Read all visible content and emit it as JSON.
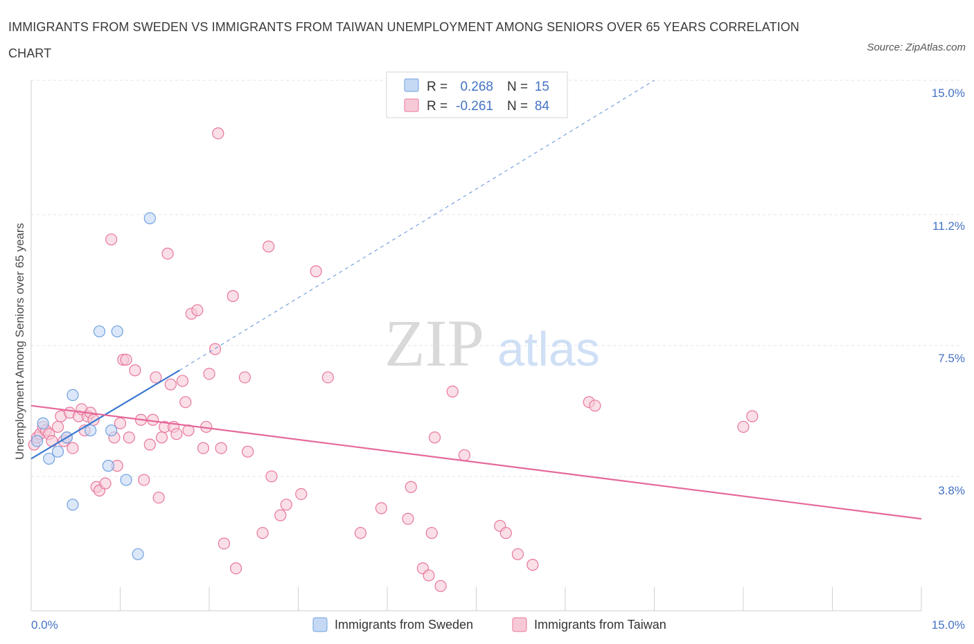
{
  "title": "IMMIGRANTS FROM SWEDEN VS IMMIGRANTS FROM TAIWAN UNEMPLOYMENT AMONG SENIORS OVER 65 YEARS CORRELATION CHART",
  "source": "Source: ZipAtlas.com",
  "watermark": {
    "zip": "ZIP",
    "atlas": "atlas"
  },
  "colors": {
    "sweden": "#6fa0df",
    "sweden_fill": "#c5d9f5",
    "taiwan": "#e8769c",
    "taiwan_fill": "#f7c9d7",
    "accent": "#4472c4"
  },
  "legend": {
    "rows": [
      {
        "r_label": "R =",
        "r_value": "0.268",
        "n_label": "N =",
        "n_value": "15"
      },
      {
        "r_label": "R =",
        "r_value": "-0.261",
        "n_label": "N =",
        "n_value": "84"
      }
    ]
  },
  "bottom_legend": [
    "Immigrants from Sweden",
    "Immigrants from Taiwan"
  ],
  "chart_data": {
    "type": "scatter",
    "title": "IMMIGRANTS FROM SWEDEN VS IMMIGRANTS FROM TAIWAN UNEMPLOYMENT AMONG SENIORS OVER 65 YEARS CORRELATION CHART",
    "xlabel": "",
    "ylabel": "Unemployment Among Seniors over 65 years",
    "xlim": [
      0,
      15
    ],
    "ylim": [
      0,
      15
    ],
    "x_tick_labels": [
      "0.0%",
      "15.0%"
    ],
    "y_ticks": [
      3.8,
      7.5,
      11.2,
      15.0
    ],
    "y_tick_labels": [
      "3.8%",
      "7.5%",
      "11.2%",
      "15.0%"
    ],
    "series": [
      {
        "name": "Immigrants from Sweden",
        "R": 0.268,
        "N": 15,
        "trend": {
          "x": [
            0,
            2.5
          ],
          "y": [
            4.3,
            6.8
          ],
          "extended_x": [
            2.5,
            10.5
          ],
          "extended_y": [
            6.8,
            15.0
          ]
        },
        "points": [
          [
            0.1,
            4.8
          ],
          [
            0.2,
            5.3
          ],
          [
            0.3,
            4.3
          ],
          [
            0.45,
            4.5
          ],
          [
            0.6,
            4.9
          ],
          [
            0.7,
            3.0
          ],
          [
            0.7,
            6.1
          ],
          [
            1.0,
            5.1
          ],
          [
            1.15,
            7.9
          ],
          [
            1.3,
            4.1
          ],
          [
            1.35,
            5.1
          ],
          [
            1.45,
            7.9
          ],
          [
            1.6,
            3.7
          ],
          [
            1.8,
            1.6
          ],
          [
            2.0,
            11.1
          ]
        ]
      },
      {
        "name": "Immigrants from Taiwan",
        "R": -0.261,
        "N": 84,
        "trend": {
          "x": [
            0,
            15
          ],
          "y": [
            5.8,
            2.6
          ]
        },
        "points": [
          [
            0.05,
            4.7
          ],
          [
            0.1,
            4.9
          ],
          [
            0.15,
            5.0
          ],
          [
            0.2,
            5.2
          ],
          [
            0.25,
            5.1
          ],
          [
            0.3,
            5.0
          ],
          [
            0.35,
            4.8
          ],
          [
            0.45,
            5.2
          ],
          [
            0.5,
            5.5
          ],
          [
            0.55,
            4.8
          ],
          [
            0.6,
            4.9
          ],
          [
            0.65,
            5.6
          ],
          [
            0.7,
            4.6
          ],
          [
            0.8,
            5.5
          ],
          [
            0.85,
            5.7
          ],
          [
            0.9,
            5.1
          ],
          [
            0.95,
            5.5
          ],
          [
            1.0,
            5.6
          ],
          [
            1.05,
            5.4
          ],
          [
            1.1,
            3.5
          ],
          [
            1.15,
            3.4
          ],
          [
            1.25,
            3.6
          ],
          [
            1.35,
            10.5
          ],
          [
            1.4,
            4.9
          ],
          [
            1.45,
            4.1
          ],
          [
            1.5,
            5.3
          ],
          [
            1.55,
            7.1
          ],
          [
            1.6,
            7.1
          ],
          [
            1.65,
            4.9
          ],
          [
            1.75,
            6.8
          ],
          [
            1.85,
            5.4
          ],
          [
            1.9,
            3.7
          ],
          [
            2.0,
            4.7
          ],
          [
            2.05,
            5.4
          ],
          [
            2.1,
            6.6
          ],
          [
            2.15,
            3.2
          ],
          [
            2.2,
            4.9
          ],
          [
            2.25,
            5.2
          ],
          [
            2.3,
            10.1
          ],
          [
            2.35,
            6.4
          ],
          [
            2.4,
            5.2
          ],
          [
            2.45,
            5.0
          ],
          [
            2.55,
            6.5
          ],
          [
            2.6,
            5.9
          ],
          [
            2.65,
            5.1
          ],
          [
            2.7,
            8.4
          ],
          [
            2.8,
            8.5
          ],
          [
            2.9,
            4.6
          ],
          [
            2.95,
            5.2
          ],
          [
            3.0,
            6.7
          ],
          [
            3.1,
            7.4
          ],
          [
            3.15,
            13.5
          ],
          [
            3.2,
            4.6
          ],
          [
            3.25,
            1.9
          ],
          [
            3.4,
            8.9
          ],
          [
            3.45,
            1.2
          ],
          [
            3.6,
            6.6
          ],
          [
            3.65,
            4.5
          ],
          [
            3.9,
            2.2
          ],
          [
            4.0,
            10.3
          ],
          [
            4.05,
            3.8
          ],
          [
            4.2,
            2.7
          ],
          [
            4.3,
            3.0
          ],
          [
            4.55,
            3.3
          ],
          [
            4.8,
            9.6
          ],
          [
            5.0,
            6.6
          ],
          [
            5.55,
            2.2
          ],
          [
            5.9,
            2.9
          ],
          [
            6.35,
            2.6
          ],
          [
            6.4,
            3.5
          ],
          [
            6.6,
            1.2
          ],
          [
            6.7,
            1.0
          ],
          [
            6.75,
            2.2
          ],
          [
            6.8,
            4.9
          ],
          [
            6.9,
            0.7
          ],
          [
            7.1,
            6.2
          ],
          [
            7.3,
            4.4
          ],
          [
            7.9,
            2.4
          ],
          [
            8.0,
            2.2
          ],
          [
            8.2,
            1.6
          ],
          [
            8.45,
            1.3
          ],
          [
            9.4,
            5.9
          ],
          [
            9.5,
            5.8
          ],
          [
            12.0,
            5.2
          ],
          [
            12.15,
            5.5
          ]
        ]
      }
    ]
  }
}
